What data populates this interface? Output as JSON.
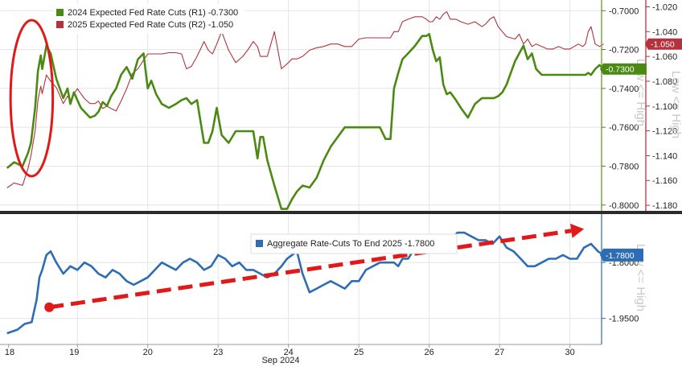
{
  "chart_data": [
    {
      "type": "line",
      "panel": "top",
      "x_label": "",
      "x_categories": [
        "18",
        "19",
        "20",
        "23",
        "24",
        "25",
        "26",
        "27",
        "30"
      ],
      "x_month_label": "Sep 2024",
      "grid": true,
      "legend_position": "top-left",
      "series": [
        {
          "name": "2024 Expected Fed Rate Cuts (R1) -0.7300",
          "axis": "R1",
          "color": "#4b8a12",
          "x": [
            0.0,
            0.1,
            0.22,
            0.3,
            0.34,
            0.4,
            0.44,
            0.48,
            0.5,
            0.56,
            0.62,
            0.7,
            0.8,
            0.86,
            0.9,
            0.95,
            1.0,
            1.05,
            1.1,
            1.18,
            1.25,
            1.3,
            1.36,
            1.42,
            1.48,
            1.55,
            1.62,
            1.7,
            1.78,
            1.86,
            1.94,
            2.0,
            2.05,
            2.12,
            2.2,
            2.3,
            2.4,
            2.48,
            2.55,
            2.62,
            2.7,
            2.8,
            2.86,
            2.92,
            2.98,
            3.05,
            3.15,
            3.25,
            3.35,
            3.42,
            3.5,
            3.56,
            3.6,
            3.64,
            3.7,
            3.8,
            3.9,
            3.98,
            4.05,
            4.12,
            4.2,
            4.3,
            4.4,
            4.5,
            4.6,
            4.7,
            4.8,
            4.9,
            5.0,
            5.1,
            5.2,
            5.3,
            5.38,
            5.45,
            5.5,
            5.56,
            5.62,
            5.7,
            5.8,
            5.9,
            5.96,
            6.0,
            6.05,
            6.1,
            6.15,
            6.2,
            6.25,
            6.3,
            6.38,
            6.45,
            6.55,
            6.65,
            6.75,
            6.8,
            6.86,
            6.92,
            6.98,
            7.04,
            7.1,
            7.16,
            7.22,
            7.28,
            7.34,
            7.4,
            7.46,
            7.52,
            7.6,
            7.68,
            7.76,
            7.84,
            7.92,
            8.0,
            8.06,
            8.12,
            8.18,
            8.22,
            8.26,
            8.3,
            8.36,
            8.42,
            8.48
          ],
          "values": [
            -0.781,
            -0.778,
            -0.78,
            -0.773,
            -0.768,
            -0.75,
            -0.731,
            -0.723,
            -0.73,
            -0.718,
            -0.722,
            -0.735,
            -0.745,
            -0.74,
            -0.748,
            -0.742,
            -0.746,
            -0.75,
            -0.752,
            -0.755,
            -0.754,
            -0.752,
            -0.747,
            -0.749,
            -0.744,
            -0.74,
            -0.733,
            -0.729,
            -0.735,
            -0.725,
            -0.722,
            -0.74,
            -0.736,
            -0.743,
            -0.748,
            -0.75,
            -0.748,
            -0.746,
            -0.745,
            -0.748,
            -0.746,
            -0.768,
            -0.768,
            -0.762,
            -0.75,
            -0.764,
            -0.768,
            -0.762,
            -0.762,
            -0.762,
            -0.762,
            -0.776,
            -0.765,
            -0.765,
            -0.777,
            -0.79,
            -0.802,
            -0.802,
            -0.797,
            -0.793,
            -0.79,
            -0.791,
            -0.786,
            -0.777,
            -0.77,
            -0.765,
            -0.76,
            -0.76,
            -0.76,
            -0.76,
            -0.76,
            -0.76,
            -0.766,
            -0.766,
            -0.74,
            -0.732,
            -0.725,
            -0.722,
            -0.718,
            -0.713,
            -0.713,
            -0.712,
            -0.72,
            -0.726,
            -0.724,
            -0.738,
            -0.743,
            -0.742,
            -0.746,
            -0.75,
            -0.755,
            -0.748,
            -0.745,
            -0.745,
            -0.745,
            -0.745,
            -0.744,
            -0.742,
            -0.738,
            -0.732,
            -0.726,
            -0.722,
            -0.718,
            -0.725,
            -0.722,
            -0.73,
            -0.733,
            -0.733,
            -0.733,
            -0.733,
            -0.733,
            -0.733,
            -0.733,
            -0.733,
            -0.733,
            -0.733,
            -0.732,
            -0.733,
            -0.73,
            -0.728,
            -0.73
          ]
        },
        {
          "name": "2025 Expected Fed Rate Cuts (R2) -1.050",
          "axis": "R2",
          "color": "#b4323c",
          "x": [
            0.0,
            0.1,
            0.22,
            0.3,
            0.34,
            0.4,
            0.44,
            0.48,
            0.5,
            0.56,
            0.62,
            0.7,
            0.8,
            0.86,
            0.9,
            0.95,
            1.0,
            1.05,
            1.1,
            1.18,
            1.25,
            1.3,
            1.36,
            1.42,
            1.48,
            1.55,
            1.62,
            1.7,
            1.78,
            1.86,
            1.94,
            2.0,
            2.05,
            2.12,
            2.2,
            2.3,
            2.4,
            2.48,
            2.55,
            2.62,
            2.7,
            2.8,
            2.86,
            2.92,
            2.98,
            3.05,
            3.15,
            3.25,
            3.35,
            3.42,
            3.5,
            3.56,
            3.6,
            3.64,
            3.7,
            3.8,
            3.9,
            3.98,
            4.05,
            4.12,
            4.2,
            4.3,
            4.4,
            4.5,
            4.6,
            4.7,
            4.8,
            4.9,
            5.0,
            5.1,
            5.2,
            5.3,
            5.38,
            5.45,
            5.5,
            5.56,
            5.62,
            5.7,
            5.8,
            5.9,
            5.96,
            6.0,
            6.05,
            6.1,
            6.15,
            6.2,
            6.25,
            6.3,
            6.38,
            6.45,
            6.55,
            6.65,
            6.75,
            6.8,
            6.86,
            6.92,
            6.98,
            7.04,
            7.1,
            7.16,
            7.22,
            7.28,
            7.34,
            7.4,
            7.46,
            7.52,
            7.6,
            7.68,
            7.76,
            7.84,
            7.92,
            8.0,
            8.06,
            8.12,
            8.18,
            8.22,
            8.26,
            8.3,
            8.36,
            8.42,
            8.48
          ],
          "values": [
            -1.166,
            -1.162,
            -1.164,
            -1.15,
            -1.14,
            -1.12,
            -1.095,
            -1.084,
            -1.09,
            -1.075,
            -1.08,
            -1.085,
            -1.098,
            -1.092,
            -1.096,
            -1.09,
            -1.086,
            -1.09,
            -1.094,
            -1.098,
            -1.098,
            -1.096,
            -1.102,
            -1.1,
            -1.102,
            -1.104,
            -1.096,
            -1.086,
            -1.074,
            -1.07,
            -1.063,
            -1.058,
            -1.058,
            -1.058,
            -1.058,
            -1.057,
            -1.057,
            -1.058,
            -1.07,
            -1.068,
            -1.06,
            -1.048,
            -1.055,
            -1.058,
            -1.05,
            -1.04,
            -1.055,
            -1.065,
            -1.06,
            -1.055,
            -1.048,
            -1.052,
            -1.06,
            -1.06,
            -1.06,
            -1.04,
            -1.07,
            -1.066,
            -1.062,
            -1.062,
            -1.06,
            -1.055,
            -1.053,
            -1.052,
            -1.05,
            -1.05,
            -1.052,
            -1.052,
            -1.046,
            -1.045,
            -1.045,
            -1.045,
            -1.045,
            -1.045,
            -1.04,
            -1.04,
            -1.032,
            -1.03,
            -1.028,
            -1.028,
            -1.03,
            -1.032,
            -1.032,
            -1.028,
            -1.03,
            -1.026,
            -1.024,
            -1.03,
            -1.03,
            -1.032,
            -1.034,
            -1.032,
            -1.036,
            -1.034,
            -1.03,
            -1.028,
            -1.036,
            -1.04,
            -1.044,
            -1.045,
            -1.046,
            -1.042,
            -1.05,
            -1.046,
            -1.052,
            -1.05,
            -1.052,
            -1.054,
            -1.054,
            -1.052,
            -1.054,
            -1.054,
            -1.052,
            -1.05,
            -1.052,
            -1.05,
            -1.04,
            -1.036,
            -1.05,
            -1.052,
            -1.05
          ]
        }
      ],
      "right_axis_1": {
        "label": "",
        "range": [
          -0.6945,
          -0.803
        ],
        "ticks": [
          "-0.8000",
          "-0.7800",
          "-0.7600",
          "-0.7400",
          "-0.7200",
          "-0.7000"
        ],
        "tick_values": [
          -0.8,
          -0.78,
          -0.76,
          -0.74,
          -0.72,
          -0.7
        ],
        "color": "#4b8a12"
      },
      "right_axis_2": {
        "label": "",
        "range": [
          -1.0145,
          -1.1845
        ],
        "ticks": [
          "-1.180",
          "-1.160",
          "-1.140",
          "-1.120",
          "-1.100",
          "-1.080",
          "-1.060",
          "-1.040",
          "-1.020"
        ],
        "tick_values": [
          -1.18,
          -1.16,
          -1.14,
          -1.12,
          -1.1,
          -1.08,
          -1.06,
          -1.04,
          -1.02
        ],
        "color": "#b4323c"
      },
      "last_value_tags": [
        {
          "text": "-0.7300",
          "color": "#4b8a12",
          "axis": "R1",
          "value": -0.73
        },
        {
          "text": "-1.050",
          "color": "#b4323c",
          "axis": "R2",
          "value": -1.05
        }
      ],
      "side_labels": [
        "Low <= High",
        "Low <= High"
      ],
      "annotation": {
        "shape": "ellipse",
        "color": "#e01919",
        "x_from": 0.15,
        "x_to": 0.75,
        "covers": "first-day"
      }
    },
    {
      "type": "line",
      "panel": "bottom",
      "x_label": "",
      "grid": true,
      "legend_position": "top-center",
      "series": [
        {
          "name": "Aggregate Rate-Cuts To End 2025 -1.7800",
          "color": "#2e6db4",
          "x": [
            0.0,
            0.15,
            0.25,
            0.35,
            0.42,
            0.46,
            0.5,
            0.56,
            0.62,
            0.7,
            0.8,
            0.9,
            1.0,
            1.1,
            1.2,
            1.3,
            1.4,
            1.5,
            1.6,
            1.7,
            1.8,
            1.9,
            2.0,
            2.1,
            2.2,
            2.3,
            2.4,
            2.5,
            2.6,
            2.7,
            2.8,
            2.9,
            3.0,
            3.1,
            3.2,
            3.3,
            3.4,
            3.5,
            3.6,
            3.7,
            3.8,
            3.9,
            3.98,
            4.05,
            4.12,
            4.2,
            4.3,
            4.4,
            4.5,
            4.6,
            4.7,
            4.8,
            4.9,
            5.0,
            5.1,
            5.2,
            5.3,
            5.4,
            5.5,
            5.56,
            5.62,
            5.7,
            5.8,
            5.9,
            6.0,
            6.1,
            6.2,
            6.3,
            6.4,
            6.5,
            6.6,
            6.7,
            6.8,
            6.9,
            7.0,
            7.1,
            7.2,
            7.3,
            7.4,
            7.5,
            7.6,
            7.7,
            7.8,
            7.9,
            8.0,
            8.1,
            8.2,
            8.3,
            8.4,
            8.48
          ],
          "values": [
            -1.99,
            -1.98,
            -1.965,
            -1.96,
            -1.9,
            -1.84,
            -1.82,
            -1.78,
            -1.77,
            -1.8,
            -1.83,
            -1.81,
            -1.82,
            -1.8,
            -1.81,
            -1.83,
            -1.84,
            -1.82,
            -1.83,
            -1.85,
            -1.86,
            -1.85,
            -1.84,
            -1.82,
            -1.8,
            -1.81,
            -1.82,
            -1.8,
            -1.79,
            -1.8,
            -1.82,
            -1.81,
            -1.78,
            -1.79,
            -1.81,
            -1.8,
            -1.82,
            -1.82,
            -1.83,
            -1.84,
            -1.83,
            -1.81,
            -1.79,
            -1.78,
            -1.77,
            -1.83,
            -1.88,
            -1.87,
            -1.86,
            -1.85,
            -1.86,
            -1.87,
            -1.85,
            -1.85,
            -1.82,
            -1.81,
            -1.8,
            -1.8,
            -1.8,
            -1.81,
            -1.79,
            -1.79,
            -1.76,
            -1.75,
            -1.75,
            -1.74,
            -1.74,
            -1.74,
            -1.72,
            -1.72,
            -1.73,
            -1.74,
            -1.74,
            -1.75,
            -1.73,
            -1.76,
            -1.77,
            -1.79,
            -1.81,
            -1.81,
            -1.8,
            -1.79,
            -1.79,
            -1.78,
            -1.79,
            -1.79,
            -1.76,
            -1.75,
            -1.77,
            -1.78
          ]
        }
      ],
      "right_axis": {
        "label": "",
        "range": [
          -1.67,
          -2.02
        ],
        "ticks": [
          "-1.9500",
          "-1.8000"
        ],
        "tick_values": [
          -1.95,
          -1.8
        ],
        "color": "#2e6db4"
      },
      "last_value_tags": [
        {
          "text": "-1.7800",
          "color": "#2e6db4",
          "value": -1.78
        }
      ],
      "side_labels": [
        "Low <= High"
      ],
      "annotation": {
        "shape": "dashed-arrow",
        "color": "#e01919",
        "from": {
          "x": 0.6,
          "y": -1.92
        },
        "to": {
          "x": 8.3,
          "y": -1.71
        }
      }
    }
  ]
}
